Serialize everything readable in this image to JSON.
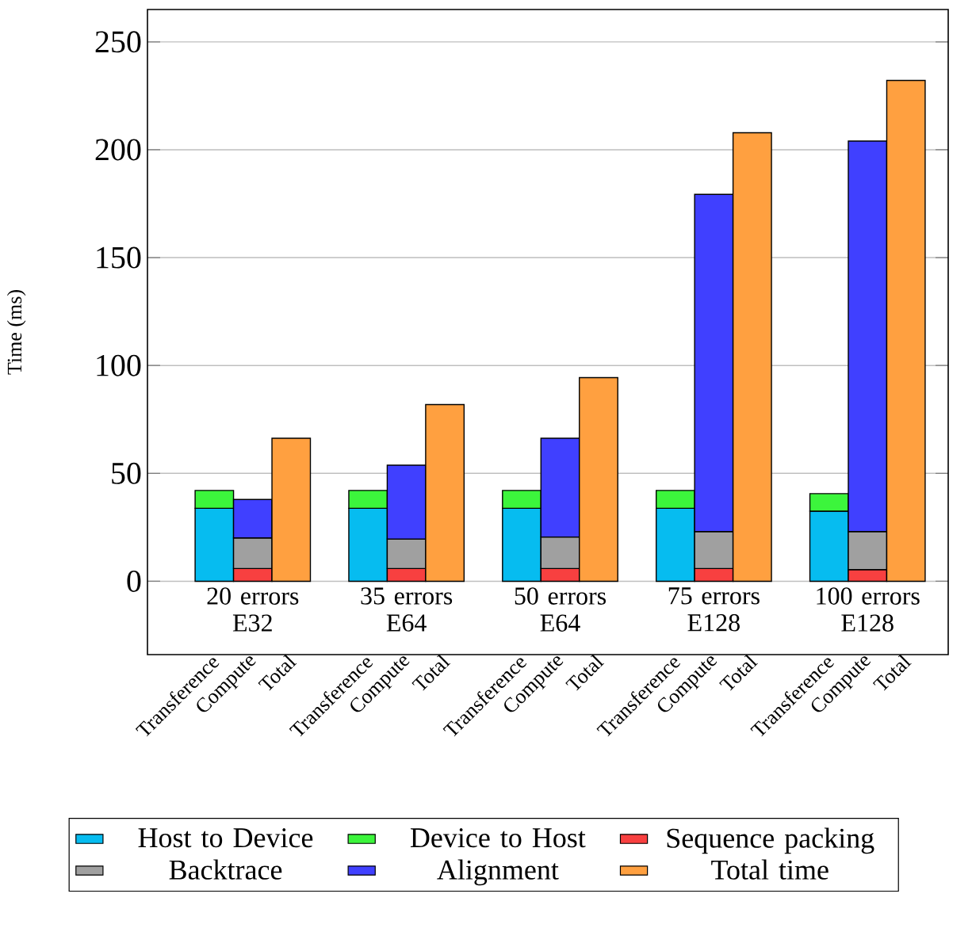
{
  "chart_data": {
    "type": "bar",
    "stacked": true,
    "ylabel": "Time (ms)",
    "categories": [
      "Transference",
      "Compute",
      "Total",
      null,
      "Transference",
      "Compute",
      "Total",
      null,
      "Transference",
      "Compute",
      "Total",
      null,
      "Transference",
      "Compute",
      "Total",
      null,
      "Transference",
      "Compute",
      "Total"
    ],
    "series": [
      {
        "name": "Host to Device",
        "color": "#06bcf0",
        "values": [
          33.8,
          null,
          null,
          null,
          33.8,
          null,
          null,
          null,
          33.8,
          null,
          null,
          null,
          33.8,
          null,
          null,
          null,
          32.5,
          null,
          null
        ]
      },
      {
        "name": "Device to Host",
        "color": "#3cf53c",
        "values": [
          8.3,
          null,
          null,
          null,
          8.3,
          null,
          null,
          null,
          8.3,
          null,
          null,
          null,
          8.3,
          null,
          null,
          null,
          8.1,
          null,
          null
        ]
      },
      {
        "name": "Sequence packing",
        "color": "#f84040",
        "values": [
          null,
          5.9,
          null,
          null,
          null,
          5.9,
          null,
          null,
          null,
          5.9,
          null,
          null,
          null,
          5.9,
          null,
          null,
          null,
          5.4,
          null
        ]
      },
      {
        "name": "Backtrace",
        "color": "#a0a0a0",
        "values": [
          null,
          14.2,
          null,
          null,
          null,
          13.7,
          null,
          null,
          null,
          14.6,
          null,
          null,
          null,
          17.1,
          null,
          null,
          null,
          17.6,
          null
        ]
      },
      {
        "name": "Alignment",
        "color": "#4040ff",
        "values": [
          null,
          17.8,
          null,
          null,
          null,
          34.2,
          null,
          null,
          null,
          45.8,
          null,
          null,
          null,
          156.3,
          null,
          null,
          null,
          181,
          null
        ]
      },
      {
        "name": "Total time",
        "color": "#ffa040",
        "values": [
          null,
          null,
          66.3,
          null,
          null,
          null,
          81.9,
          null,
          null,
          null,
          94.4,
          null,
          null,
          null,
          207.9,
          null,
          null,
          null,
          232.1
        ]
      }
    ],
    "annotations": [
      "20 errors E32",
      "35 errors E64",
      "50 errors E64",
      "75 errors E128",
      "100 errors E128"
    ],
    "ylim": [
      -34,
      265
    ],
    "yticks": [
      0,
      50,
      100,
      150,
      200,
      250
    ],
    "grid": "y",
    "legend": "bottom"
  }
}
